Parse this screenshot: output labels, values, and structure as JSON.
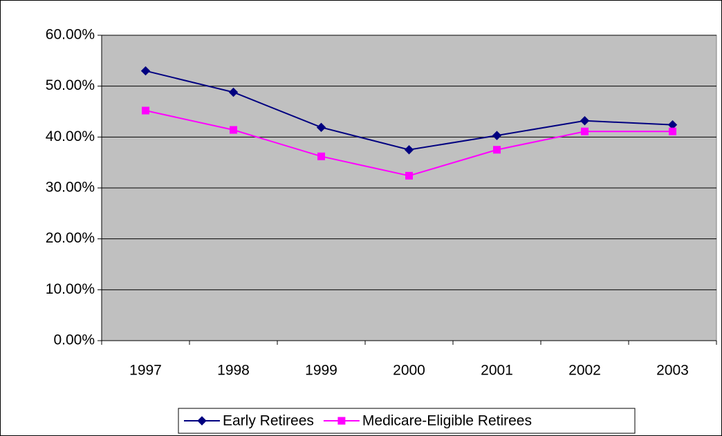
{
  "chart_data": {
    "type": "line",
    "categories": [
      "1997",
      "1998",
      "1999",
      "2000",
      "2001",
      "2002",
      "2003"
    ],
    "series": [
      {
        "name": "Early Retirees",
        "color": "#000080",
        "marker": "diamond",
        "values": [
          53.0,
          48.8,
          41.9,
          37.5,
          40.3,
          43.2,
          42.4
        ]
      },
      {
        "name": "Medicare-Eligible Retirees",
        "color": "#ff00ff",
        "marker": "square",
        "values": [
          45.2,
          41.4,
          36.2,
          32.4,
          37.5,
          41.1,
          41.1
        ]
      }
    ],
    "ylim": [
      0,
      60
    ],
    "yticks": [
      {
        "value": 0,
        "label": "0.00%"
      },
      {
        "value": 10,
        "label": "10.00%"
      },
      {
        "value": 20,
        "label": "20.00%"
      },
      {
        "value": 30,
        "label": "30.00%"
      },
      {
        "value": 40,
        "label": "40.00%"
      },
      {
        "value": 50,
        "label": "50.00%"
      },
      {
        "value": 60,
        "label": "60.00%"
      }
    ],
    "grid": true,
    "legend": "bottom",
    "plot_background": "#c0c0c0"
  }
}
